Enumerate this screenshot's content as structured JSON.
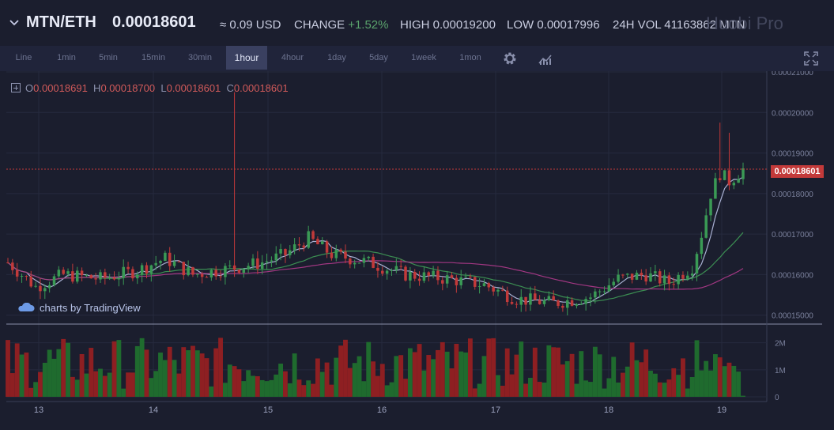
{
  "header": {
    "pair": "MTN/ETH",
    "price": "0.00018601",
    "usd": "≈ 0.09 USD",
    "change_label": "CHANGE",
    "change_value": "+1.52%",
    "high": "HIGH 0.00019200",
    "low": "LOW 0.00017996",
    "volume": "24H VOL 41163862 MTN",
    "logo": "Huobi Pro"
  },
  "toolbar": {
    "intervals": [
      "Line",
      "1min",
      "5min",
      "15min",
      "30min",
      "1hour",
      "4hour",
      "1day",
      "5day",
      "1week",
      "1mon"
    ],
    "active": "1hour",
    "icons": [
      "gear-icon",
      "indicators-icon",
      "fullscreen-icon"
    ]
  },
  "ohlc": {
    "o_label": "O",
    "o": "0.00018691",
    "h_label": "H",
    "h": "0.00018700",
    "l_label": "L",
    "l": "0.00018601",
    "c_label": "C",
    "c": "0.00018601"
  },
  "watermark": "charts by TradingView",
  "last_price_badge": "0.00018601",
  "colors": {
    "up": "#3a9a55",
    "down": "#c23a3a",
    "ma_fast": "#b9c1e6",
    "ma_mid": "#3f9a56",
    "ma_slow": "#b03a8c",
    "grid": "#262a3e"
  },
  "chart_data": {
    "type": "candlestick",
    "y_axis": {
      "ticks": [
        "0.00015000",
        "0.00016000",
        "0.00017000",
        "0.00018000",
        "0.00019000",
        "0.00020000",
        "0.00021000"
      ],
      "range": [
        0.0001478,
        0.0002102
      ]
    },
    "volume_axis": {
      "ticks": [
        "0",
        "1M",
        "2M"
      ],
      "range": [
        0,
        2400000
      ]
    },
    "x_axis": {
      "ticks": [
        "13",
        "14",
        "15",
        "16",
        "17",
        "18",
        "19"
      ]
    }
  }
}
